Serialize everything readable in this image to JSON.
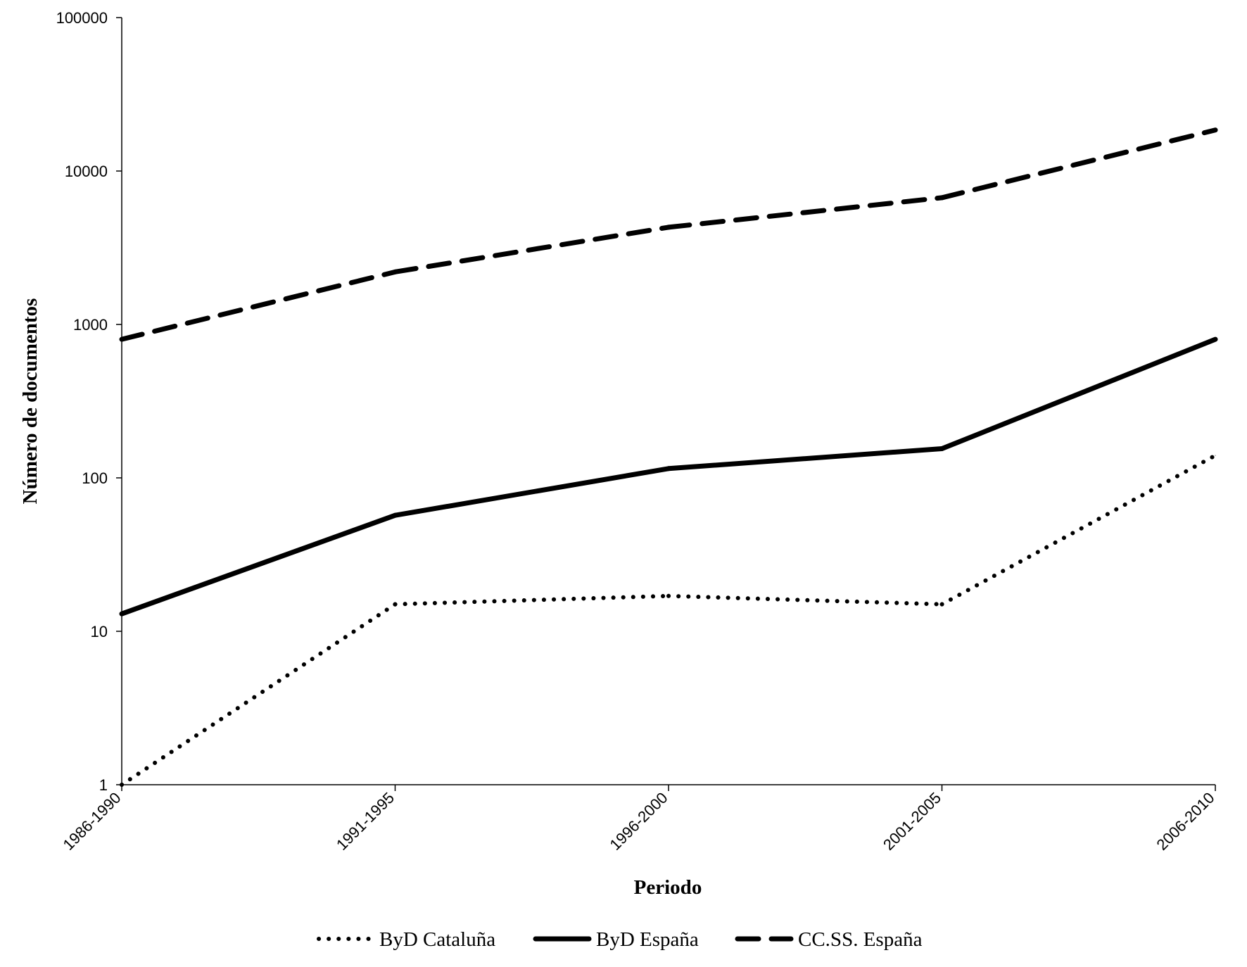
{
  "chart_data": {
    "type": "line",
    "title": "",
    "xlabel": "Periodo",
    "ylabel": "Número de documentos",
    "yscale": "log",
    "ylim": [
      1,
      100000
    ],
    "y_ticks": [
      "1",
      "10",
      "100",
      "1000",
      "10000",
      "100000"
    ],
    "categories": [
      "1986-1990",
      "1991-1995",
      "1996-2000",
      "2001-2005",
      "2006-2010"
    ],
    "grid": false,
    "legend_position": "bottom",
    "series": [
      {
        "name": "ByD Cataluña",
        "style": "dotted",
        "color": "#000000",
        "values": [
          1,
          15,
          17,
          15,
          140
        ]
      },
      {
        "name": "ByD España",
        "style": "solid",
        "color": "#000000",
        "values": [
          13,
          57,
          115,
          155,
          800
        ]
      },
      {
        "name": "CC.SS. España",
        "style": "dashed",
        "color": "#000000",
        "values": [
          800,
          2200,
          4300,
          6700,
          18500
        ]
      }
    ]
  }
}
